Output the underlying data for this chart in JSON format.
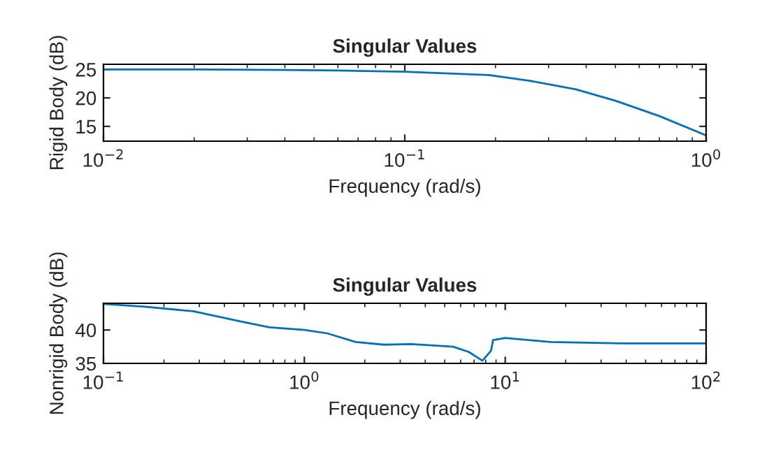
{
  "chart_data": [
    {
      "type": "line",
      "title": "Singular Values",
      "xlabel": "Frequency (rad/s)",
      "ylabel": "Rigid Body (dB)",
      "log": "x",
      "x": [
        0.01,
        0.02,
        0.04,
        0.06,
        0.1,
        0.14,
        0.19,
        0.26,
        0.37,
        0.5,
        0.7,
        1.0
      ],
      "series": [
        {
          "color": "#0072bd",
          "values": [
            25.0,
            25.0,
            24.9,
            24.8,
            24.6,
            24.3,
            24.0,
            23.0,
            21.5,
            19.5,
            16.8,
            13.4
          ]
        }
      ],
      "xlim": [
        0.01,
        1
      ],
      "xticks": [
        {
          "value": 0.01,
          "label": "10$^{−2}$"
        },
        {
          "value": 0.1,
          "label": "10$^{−1}$"
        },
        {
          "value": 1,
          "label": "10$^{0}$"
        }
      ],
      "ylim": [
        12.4,
        25.9
      ],
      "yticks": [
        15,
        20,
        25
      ],
      "grid": false
    },
    {
      "type": "line",
      "title": "Singular Values",
      "xlabel": "Frequency (rad/s)",
      "ylabel": "Nonrigid Body (dB)",
      "log": "x",
      "x": [
        0.1,
        0.16,
        0.28,
        0.48,
        0.67,
        1.0,
        1.3,
        1.8,
        2.5,
        3.4,
        5.5,
        6.6,
        7.7,
        8.5,
        8.7,
        10,
        16.8,
        38,
        100
      ],
      "series": [
        {
          "color": "#0072bd",
          "values": [
            43.9,
            43.5,
            42.8,
            41.3,
            40.4,
            40.0,
            39.5,
            38.2,
            37.8,
            37.9,
            37.5,
            36.7,
            35.4,
            36.9,
            38.5,
            38.8,
            38.2,
            38.0,
            38.0
          ]
        }
      ],
      "xlim": [
        0.1,
        100
      ],
      "xticks": [
        {
          "value": 0.1,
          "label": "10$^{−1}$"
        },
        {
          "value": 1,
          "label": "10$^{0}$"
        },
        {
          "value": 10,
          "label": "10$^{1}$"
        },
        {
          "value": 100,
          "label": "10$^{2}$"
        }
      ],
      "ylim": [
        35,
        44
      ],
      "yticks": [
        35,
        40
      ],
      "grid": false
    }
  ]
}
